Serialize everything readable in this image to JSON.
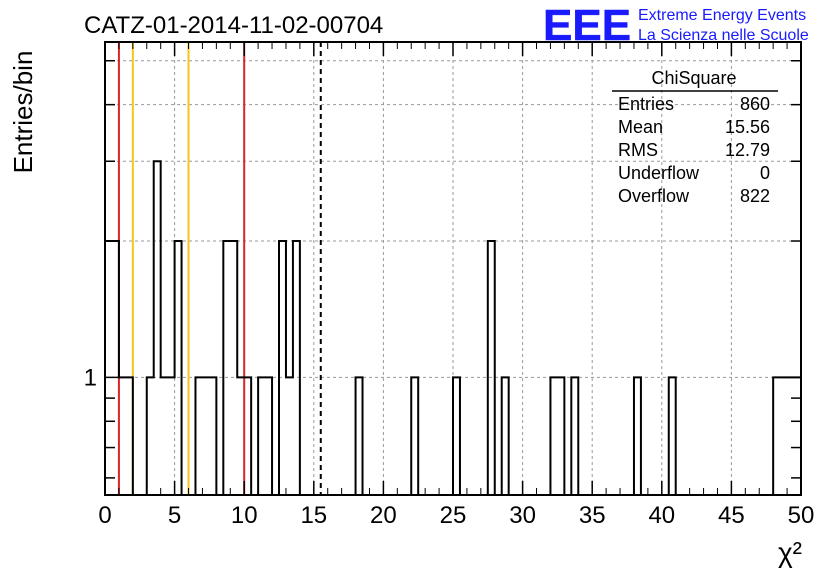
{
  "chart_data": {
    "type": "bar",
    "title": "CATZ-01-2014-11-02-00704",
    "xlabel": "χ²",
    "ylabel": "Entries/bin",
    "xlim": [
      0,
      50
    ],
    "ylim": [
      0.55,
      5.5
    ],
    "log_y": true,
    "grid": true,
    "x_ticks": [
      0,
      5,
      10,
      15,
      20,
      25,
      30,
      35,
      40,
      45,
      50
    ],
    "y_tick_labels": [
      {
        "value": 1,
        "label": "1"
      }
    ],
    "bin_width": 0.5,
    "bins": [
      {
        "x": 0.0,
        "y": 2
      },
      {
        "x": 0.5,
        "y": 2
      },
      {
        "x": 1.0,
        "y": 1
      },
      {
        "x": 1.5,
        "y": 1
      },
      {
        "x": 3.0,
        "y": 1
      },
      {
        "x": 3.5,
        "y": 3
      },
      {
        "x": 4.0,
        "y": 1
      },
      {
        "x": 4.5,
        "y": 1
      },
      {
        "x": 5.0,
        "y": 2
      },
      {
        "x": 6.5,
        "y": 1
      },
      {
        "x": 7.0,
        "y": 1
      },
      {
        "x": 7.5,
        "y": 1
      },
      {
        "x": 8.5,
        "y": 2
      },
      {
        "x": 9.0,
        "y": 2
      },
      {
        "x": 9.5,
        "y": 1
      },
      {
        "x": 10.0,
        "y": 1
      },
      {
        "x": 11.0,
        "y": 1
      },
      {
        "x": 11.5,
        "y": 1
      },
      {
        "x": 12.5,
        "y": 2
      },
      {
        "x": 13.0,
        "y": 1
      },
      {
        "x": 13.5,
        "y": 2
      },
      {
        "x": 18.0,
        "y": 1
      },
      {
        "x": 22.0,
        "y": 1
      },
      {
        "x": 25.0,
        "y": 1
      },
      {
        "x": 27.5,
        "y": 2
      },
      {
        "x": 28.5,
        "y": 1
      },
      {
        "x": 32.0,
        "y": 1
      },
      {
        "x": 32.5,
        "y": 1
      },
      {
        "x": 33.5,
        "y": 1
      },
      {
        "x": 38.0,
        "y": 1
      },
      {
        "x": 40.5,
        "y": 1
      },
      {
        "x": 48.0,
        "y": 1
      },
      {
        "x": 48.5,
        "y": 1
      },
      {
        "x": 49.0,
        "y": 1
      },
      {
        "x": 49.5,
        "y": 1
      }
    ],
    "vertical_lines": [
      {
        "x": 1.0,
        "color": "#d62728",
        "style": "solid"
      },
      {
        "x": 2.0,
        "color": "#f5c518",
        "style": "solid"
      },
      {
        "x": 6.0,
        "color": "#f5c518",
        "style": "solid"
      },
      {
        "x": 10.0,
        "color": "#d62728",
        "style": "solid"
      },
      {
        "x": 15.5,
        "color": "#000000",
        "style": "dashed"
      }
    ],
    "stats_box": {
      "title": "ChiSquare",
      "rows": [
        {
          "label": "Entries",
          "value": "860"
        },
        {
          "label": "Mean",
          "value": "15.56"
        },
        {
          "label": "RMS",
          "value": "12.79"
        },
        {
          "label": "Underflow",
          "value": "0"
        },
        {
          "label": "Overflow",
          "value": "822"
        }
      ]
    }
  },
  "logo": {
    "mark": "EEE",
    "line1": "Extreme Energy Events",
    "line2": "La Scienza nelle Scuole",
    "color": "#1a1aff"
  }
}
